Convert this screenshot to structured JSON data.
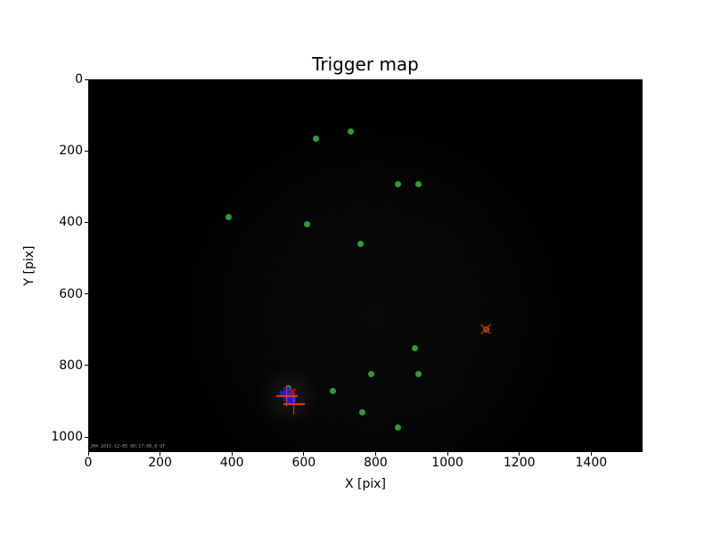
{
  "figure": {
    "title": "Trigger map",
    "xlabel": "X [pix]",
    "ylabel": "Y [pix]",
    "timestamp_overlay": "JH4 2015-12-05 00:17:00.0 UT",
    "background_color": "#ffffff",
    "image_background_color": "#000000"
  },
  "chart_data": {
    "type": "scatter",
    "title": "Trigger map",
    "xlabel": "X [pix]",
    "ylabel": "Y [pix]",
    "xlim": [
      0,
      1543
    ],
    "ylim": [
      1042,
      0
    ],
    "y_axis_inverted": true,
    "x_ticks": [
      0,
      200,
      400,
      600,
      800,
      1000,
      1200,
      1400
    ],
    "y_ticks": [
      0,
      200,
      400,
      600,
      800,
      1000
    ],
    "grid": false,
    "legend": "none",
    "background": "#000000",
    "series": [
      {
        "name": "triggered-pixels",
        "marker": "dot",
        "color": "#2e9e2e",
        "size": 7,
        "points": [
          {
            "x": 633,
            "y": 165
          },
          {
            "x": 730,
            "y": 147
          },
          {
            "x": 861,
            "y": 294
          },
          {
            "x": 918,
            "y": 292
          },
          {
            "x": 390,
            "y": 384
          },
          {
            "x": 608,
            "y": 406
          },
          {
            "x": 757,
            "y": 459
          },
          {
            "x": 1107,
            "y": 698
          },
          {
            "x": 908,
            "y": 751
          },
          {
            "x": 787,
            "y": 823
          },
          {
            "x": 918,
            "y": 823
          },
          {
            "x": 680,
            "y": 870
          },
          {
            "x": 558,
            "y": 865
          },
          {
            "x": 762,
            "y": 930
          },
          {
            "x": 861,
            "y": 973
          }
        ]
      },
      {
        "name": "bright-spot-markers",
        "marker": "thick-plus",
        "color": "#1b1bdf",
        "points": [
          {
            "x": 554,
            "y": 881,
            "size": 16,
            "thick": 7
          },
          {
            "x": 562,
            "y": 895,
            "size": 12,
            "thick": 6
          }
        ]
      },
      {
        "name": "crosshair-plus-markers",
        "marker": "plus",
        "color": "#e8391d",
        "points": [
          {
            "x": 553,
            "y": 885,
            "size": 24,
            "thick": 1.5
          },
          {
            "x": 573,
            "y": 908,
            "size": 24,
            "thick": 1.5
          }
        ]
      },
      {
        "name": "source-x-markers",
        "marker": "x",
        "color": "#b51800",
        "points": [
          {
            "x": 1107,
            "y": 698,
            "size": 15,
            "thick": 1.7
          },
          {
            "x": 568,
            "y": 873,
            "size": 9,
            "thick": 1.5
          }
        ]
      }
    ]
  }
}
